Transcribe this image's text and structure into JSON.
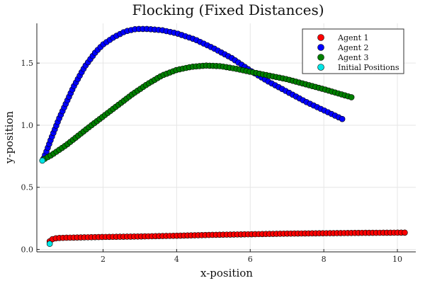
{
  "chart_data": {
    "type": "scatter",
    "title": "Flocking (Fixed Distances)",
    "xlabel": "x-position",
    "ylabel": "y-position",
    "xlim": [
      0.2,
      10.5
    ],
    "ylim": [
      -0.02,
      1.82
    ],
    "xticks": [
      2,
      4,
      6,
      8,
      10
    ],
    "yticks": [
      0.0,
      0.5,
      1.0,
      1.5
    ],
    "ytick_labels": [
      "0.0",
      "0.5",
      "1.0",
      "1.5"
    ],
    "grid": true,
    "legend_position": "top-right",
    "series": [
      {
        "name": "Agent 1",
        "color": "#ff0000",
        "points": [
          [
            0.55,
            0.065
          ],
          [
            0.6,
            0.08
          ],
          [
            0.68,
            0.088
          ],
          [
            0.8,
            0.092
          ],
          [
            1.0,
            0.094
          ],
          [
            2.0,
            0.1
          ],
          [
            3.0,
            0.104
          ],
          [
            4.0,
            0.11
          ],
          [
            5.0,
            0.117
          ],
          [
            6.0,
            0.122
          ],
          [
            7.0,
            0.127
          ],
          [
            8.0,
            0.13
          ],
          [
            9.0,
            0.133
          ],
          [
            10.2,
            0.135
          ]
        ]
      },
      {
        "name": "Agent 2",
        "color": "#0000ff",
        "points": [
          [
            0.38,
            0.73
          ],
          [
            0.45,
            0.78
          ],
          [
            0.6,
            0.9
          ],
          [
            0.8,
            1.05
          ],
          [
            1.0,
            1.18
          ],
          [
            1.2,
            1.31
          ],
          [
            1.5,
            1.47
          ],
          [
            1.8,
            1.59
          ],
          [
            2.0,
            1.65
          ],
          [
            2.3,
            1.71
          ],
          [
            2.6,
            1.755
          ],
          [
            2.9,
            1.775
          ],
          [
            3.2,
            1.775
          ],
          [
            3.6,
            1.765
          ],
          [
            4.0,
            1.74
          ],
          [
            4.5,
            1.69
          ],
          [
            5.0,
            1.62
          ],
          [
            5.5,
            1.54
          ],
          [
            6.0,
            1.44
          ],
          [
            6.5,
            1.35
          ],
          [
            7.0,
            1.27
          ],
          [
            7.5,
            1.19
          ],
          [
            8.0,
            1.12
          ],
          [
            8.5,
            1.05
          ]
        ]
      },
      {
        "name": "Agent 3",
        "color": "#008000",
        "points": [
          [
            0.42,
            0.73
          ],
          [
            0.6,
            0.76
          ],
          [
            0.8,
            0.8
          ],
          [
            1.0,
            0.84
          ],
          [
            1.3,
            0.91
          ],
          [
            1.6,
            0.98
          ],
          [
            2.0,
            1.07
          ],
          [
            2.4,
            1.16
          ],
          [
            2.8,
            1.25
          ],
          [
            3.2,
            1.33
          ],
          [
            3.6,
            1.4
          ],
          [
            4.0,
            1.445
          ],
          [
            4.4,
            1.47
          ],
          [
            4.8,
            1.48
          ],
          [
            5.2,
            1.475
          ],
          [
            5.6,
            1.455
          ],
          [
            6.0,
            1.43
          ],
          [
            6.5,
            1.4
          ],
          [
            7.0,
            1.37
          ],
          [
            7.5,
            1.33
          ],
          [
            8.0,
            1.29
          ],
          [
            8.4,
            1.255
          ],
          [
            8.75,
            1.225
          ]
        ]
      },
      {
        "name": "Initial Positions",
        "color": "#00e5e5",
        "points": [
          [
            0.35,
            0.715
          ],
          [
            0.55,
            0.045
          ]
        ]
      }
    ]
  }
}
